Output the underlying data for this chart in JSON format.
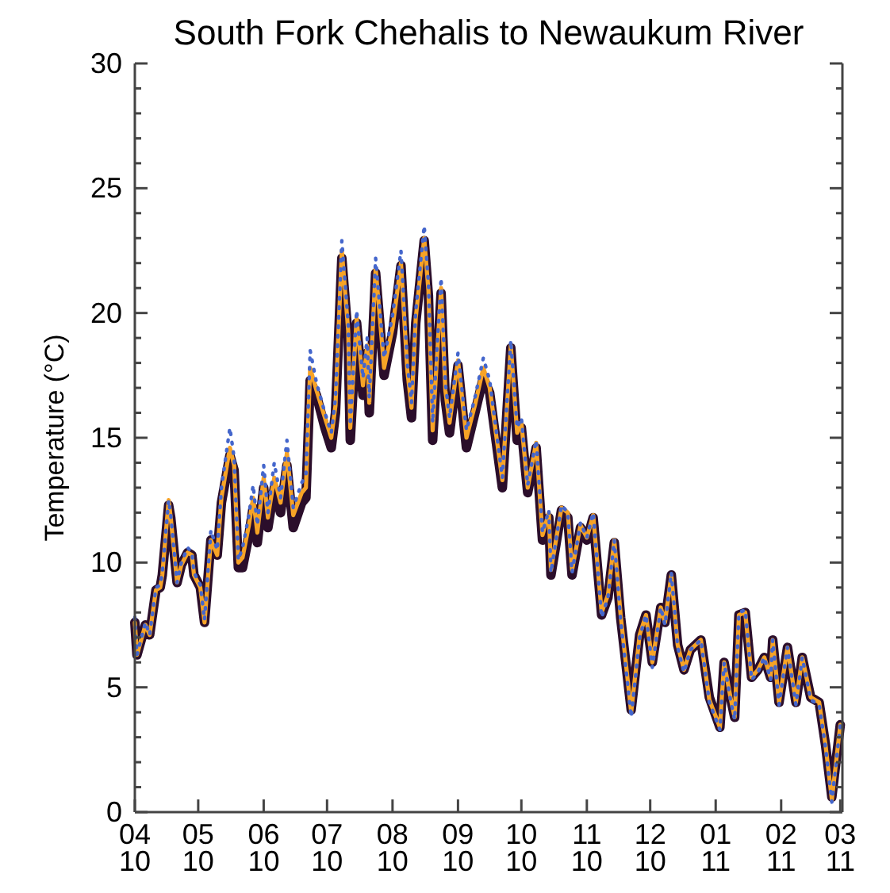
{
  "chart_data": {
    "type": "line",
    "title": "South Fork Chehalis to Newaukum River",
    "ylabel": "Temperature (°C)",
    "x": [
      "2010-04-01",
      "2010-04-02",
      "2010-04-06",
      "2010-04-08",
      "2010-04-11",
      "2010-04-13",
      "2010-04-14",
      "2010-04-17",
      "2010-04-18",
      "2010-04-21",
      "2010-04-23",
      "2010-04-26",
      "2010-04-28",
      "2010-04-29",
      "2010-05-02",
      "2010-05-04",
      "2010-05-07",
      "2010-05-10",
      "2010-05-12",
      "2010-05-16",
      "2010-05-18",
      "2010-05-20",
      "2010-05-22",
      "2010-05-25",
      "2010-05-27",
      "2010-05-29",
      "2010-06-01",
      "2010-06-03",
      "2010-06-06",
      "2010-06-09",
      "2010-06-12",
      "2010-06-15",
      "2010-06-19",
      "2010-06-21",
      "2010-06-23",
      "2010-06-26",
      "2010-06-30",
      "2010-07-03",
      "2010-07-05",
      "2010-07-08",
      "2010-07-11",
      "2010-07-12",
      "2010-07-15",
      "2010-07-18",
      "2010-07-20",
      "2010-07-21",
      "2010-07-24",
      "2010-07-28",
      "2010-08-01",
      "2010-08-05",
      "2010-08-08",
      "2010-08-10",
      "2010-08-12",
      "2010-08-16",
      "2010-08-18",
      "2010-08-20",
      "2010-08-24",
      "2010-08-26",
      "2010-08-28",
      "2010-09-01",
      "2010-09-05",
      "2010-09-09",
      "2010-09-13",
      "2010-09-16",
      "2010-09-22",
      "2010-09-26",
      "2010-09-29",
      "2010-10-01",
      "2010-10-04",
      "2010-10-08",
      "2010-10-11",
      "2010-10-14",
      "2010-10-15",
      "2010-10-20",
      "2010-10-23",
      "2010-10-25",
      "2010-10-29",
      "2010-11-01",
      "2010-11-04",
      "2010-11-08",
      "2010-11-11",
      "2010-11-14",
      "2010-11-17",
      "2010-11-22",
      "2010-11-26",
      "2010-11-29",
      "2010-12-02",
      "2010-12-06",
      "2010-12-08",
      "2010-12-11",
      "2010-12-14",
      "2010-12-17",
      "2010-12-20",
      "2010-12-25",
      "2010-12-29",
      "2011-01-03",
      "2011-01-05",
      "2011-01-08",
      "2011-01-10",
      "2011-01-12",
      "2011-01-15",
      "2011-01-18",
      "2011-01-21",
      "2011-01-24",
      "2011-01-27",
      "2011-01-28",
      "2011-01-31",
      "2011-02-04",
      "2011-02-08",
      "2011-02-11",
      "2011-02-15",
      "2011-02-19",
      "2011-02-22",
      "2011-02-25",
      "2011-03-01"
    ],
    "series": [
      {
        "color": "#2b0e2b",
        "line_style": "solid",
        "values": [
          7.6,
          6.3,
          7.5,
          7.1,
          8.9,
          9.0,
          9.5,
          12.3,
          11.8,
          9.2,
          9.9,
          10.4,
          10.3,
          9.5,
          9.0,
          7.6,
          10.9,
          10.3,
          12.4,
          14.3,
          13.7,
          9.8,
          9.8,
          11.1,
          12.2,
          10.8,
          13.0,
          11.4,
          13.0,
          12.0,
          13.9,
          11.4,
          12.4,
          12.6,
          17.3,
          16.7,
          15.4,
          14.6,
          16.0,
          22.2,
          19.0,
          14.9,
          19.6,
          16.7,
          18.4,
          16.0,
          21.6,
          17.5,
          19.2,
          21.9,
          17.3,
          15.8,
          19.6,
          22.9,
          20.7,
          14.9,
          20.8,
          16.5,
          15.2,
          17.9,
          14.6,
          16.0,
          17.4,
          16.8,
          13.0,
          18.6,
          14.9,
          15.4,
          12.8,
          14.6,
          10.9,
          11.8,
          9.5,
          12.1,
          11.8,
          9.5,
          11.4,
          10.9,
          11.8,
          7.9,
          8.6,
          10.8,
          7.8,
          4.1,
          7.1,
          7.9,
          6.0,
          8.2,
          7.6,
          9.5,
          6.7,
          5.7,
          6.5,
          6.9,
          4.6,
          3.4,
          6.0,
          4.6,
          3.8,
          7.9,
          8.0,
          5.4,
          5.7,
          6.2,
          5.4,
          6.9,
          4.4,
          6.6,
          4.4,
          6.2,
          4.6,
          4.4,
          2.7,
          0.6,
          3.5
        ]
      },
      {
        "color": "#f7a326",
        "line_style": "solid",
        "values": [
          7.6,
          6.3,
          7.5,
          7.1,
          8.9,
          9.0,
          9.5,
          12.5,
          11.8,
          9.2,
          9.9,
          10.4,
          10.3,
          9.5,
          9.0,
          7.6,
          10.9,
          10.3,
          12.6,
          14.6,
          13.9,
          10.0,
          10.2,
          11.5,
          12.6,
          11.2,
          13.4,
          11.8,
          13.4,
          12.4,
          14.4,
          11.9,
          12.8,
          13.0,
          17.8,
          16.9,
          15.8,
          15.0,
          16.3,
          22.5,
          19.3,
          15.4,
          19.8,
          17.1,
          18.7,
          16.4,
          21.8,
          17.8,
          19.4,
          22.0,
          17.7,
          16.2,
          19.8,
          23.0,
          20.9,
          15.3,
          21.0,
          16.9,
          15.6,
          18.1,
          15.0,
          16.3,
          17.8,
          17.0,
          13.3,
          18.7,
          15.2,
          15.6,
          13.0,
          14.8,
          11.1,
          12.0,
          9.7,
          12.2,
          12.0,
          9.7,
          11.5,
          11.0,
          11.9,
          8.0,
          8.7,
          10.9,
          7.9,
          4.0,
          7.1,
          7.9,
          6.0,
          8.2,
          7.6,
          9.5,
          6.7,
          5.7,
          6.5,
          6.9,
          4.5,
          3.4,
          6.0,
          4.6,
          3.8,
          7.9,
          8.0,
          5.4,
          5.7,
          6.2,
          5.4,
          6.9,
          4.4,
          6.6,
          4.4,
          6.2,
          4.6,
          4.4,
          2.7,
          0.5,
          3.5
        ]
      },
      {
        "color": "#4466cc",
        "line_style": "dotted",
        "values": [
          7.8,
          6.3,
          7.6,
          7.1,
          9.0,
          9.1,
          9.6,
          12.5,
          11.9,
          9.2,
          10.0,
          10.6,
          10.4,
          9.6,
          9.1,
          7.7,
          11.3,
          10.5,
          13.0,
          15.4,
          14.2,
          10.1,
          10.6,
          11.9,
          13.1,
          11.5,
          13.9,
          12.0,
          14.0,
          12.6,
          14.9,
          12.2,
          13.2,
          13.5,
          18.5,
          17.2,
          16.0,
          15.2,
          16.6,
          22.9,
          19.6,
          15.5,
          20.1,
          17.4,
          19.0,
          16.6,
          22.2,
          18.2,
          19.9,
          22.5,
          18.0,
          16.4,
          20.1,
          23.5,
          21.2,
          15.6,
          21.4,
          17.2,
          15.8,
          18.4,
          15.3,
          16.6,
          18.2,
          17.3,
          13.4,
          18.9,
          15.4,
          15.8,
          13.1,
          14.9,
          11.2,
          12.1,
          9.6,
          12.3,
          12.0,
          9.6,
          11.6,
          11.0,
          12.0,
          7.8,
          8.6,
          10.9,
          7.7,
          3.8,
          7.0,
          7.9,
          5.8,
          8.2,
          7.5,
          9.6,
          6.6,
          5.6,
          6.5,
          6.9,
          4.4,
          3.3,
          6.0,
          4.5,
          3.7,
          8.0,
          8.1,
          5.3,
          5.6,
          6.2,
          5.3,
          6.9,
          4.3,
          6.6,
          4.3,
          6.2,
          4.5,
          4.3,
          2.6,
          0.4,
          3.5
        ]
      }
    ],
    "xlim": [
      "2010-04-01",
      "2011-03-02"
    ],
    "xticks": [
      {
        "value": "2010-04-01",
        "label": "04\n10"
      },
      {
        "value": "2010-05-01",
        "label": "05\n10"
      },
      {
        "value": "2010-06-01",
        "label": "06\n10"
      },
      {
        "value": "2010-07-01",
        "label": "07\n10"
      },
      {
        "value": "2010-08-01",
        "label": "08\n10"
      },
      {
        "value": "2010-09-01",
        "label": "09\n10"
      },
      {
        "value": "2010-10-01",
        "label": "10\n10"
      },
      {
        "value": "2010-11-01",
        "label": "11\n10"
      },
      {
        "value": "2010-12-01",
        "label": "12\n10"
      },
      {
        "value": "2011-01-01",
        "label": "01\n11"
      },
      {
        "value": "2011-02-01",
        "label": "02\n11"
      },
      {
        "value": "2011-03-01",
        "label": "03\n11"
      }
    ],
    "ylim": [
      0,
      30
    ],
    "yticks": [
      0,
      {
        "value": 1,
        "label": null
      },
      {
        "value": 2,
        "label": null
      },
      {
        "value": 3,
        "label": null
      },
      {
        "value": 4,
        "label": null
      },
      5,
      {
        "value": 6,
        "label": null
      },
      {
        "value": 7,
        "label": null
      },
      {
        "value": 8,
        "label": null
      },
      {
        "value": 9,
        "label": null
      },
      10,
      {
        "value": 11,
        "label": null
      },
      {
        "value": 12,
        "label": null
      },
      {
        "value": 13,
        "label": null
      },
      {
        "value": 14,
        "label": null
      },
      15,
      {
        "value": 16,
        "label": null
      },
      {
        "value": 17,
        "label": null
      },
      {
        "value": 18,
        "label": null
      },
      {
        "value": 19,
        "label": null
      },
      20,
      {
        "value": 21,
        "label": null
      },
      {
        "value": 22,
        "label": null
      },
      {
        "value": 23,
        "label": null
      },
      {
        "value": 24,
        "label": null
      },
      25,
      {
        "value": 26,
        "label": null
      },
      {
        "value": 27,
        "label": null
      },
      {
        "value": 28,
        "label": null
      },
      {
        "value": 29,
        "label": null
      },
      30
    ],
    "grid": false
  }
}
